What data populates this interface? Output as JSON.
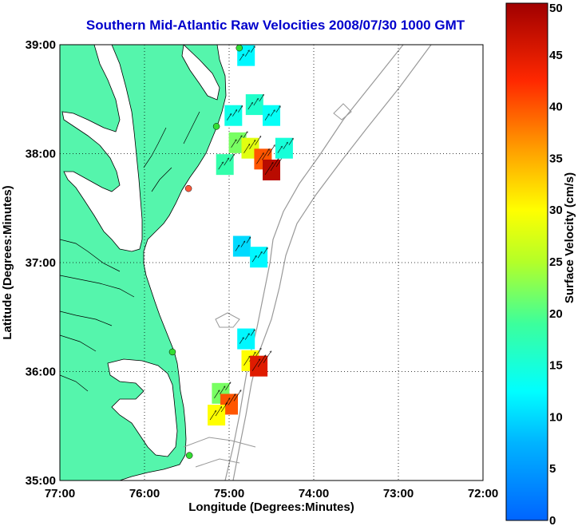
{
  "title": "Southern Mid-Atlantic Raw Velocities 2008/07/30 1000 GMT",
  "axes": {
    "xlabel": "Longitude (Degrees:Minutes)",
    "ylabel": "Latitude (Degrees:Minutes)",
    "xticks": [
      "77:00",
      "76:00",
      "75:00",
      "74:00",
      "73:00",
      "72:00"
    ],
    "yticks": [
      "39:00",
      "38:00",
      "37:00",
      "36:00",
      "35:00"
    ]
  },
  "colorbar": {
    "label": "Surface Velocity (cm/s)",
    "ticks": [
      "50",
      "45",
      "40",
      "35",
      "30",
      "25",
      "20",
      "15",
      "10",
      "5",
      "0"
    ],
    "min": 0,
    "max": 50
  },
  "colors": {
    "land": "#55f5ac",
    "water": "#ffffff",
    "title": "#0000cc",
    "station": "#33dd33",
    "station_alt": "#ff5a3c"
  },
  "chart_data": {
    "type": "heatmap",
    "lon_range": [
      -77,
      -72
    ],
    "lat_range": [
      35,
      39
    ],
    "grid": true,
    "stations": [
      {
        "lon": -74.88,
        "lat": 38.97,
        "status": "active"
      },
      {
        "lon": -75.15,
        "lat": 38.25,
        "status": "active"
      },
      {
        "lon": -75.48,
        "lat": 37.68,
        "status": "alert"
      },
      {
        "lon": -75.67,
        "lat": 36.18,
        "status": "active"
      },
      {
        "lon": -75.47,
        "lat": 35.23,
        "status": "active"
      }
    ],
    "velocity_patches": [
      {
        "lon": -74.8,
        "lat": 38.9,
        "speed": 12
      },
      {
        "lon": -74.95,
        "lat": 38.35,
        "speed": 14
      },
      {
        "lon": -74.7,
        "lat": 38.45,
        "speed": 16
      },
      {
        "lon": -74.5,
        "lat": 38.35,
        "speed": 13
      },
      {
        "lon": -74.9,
        "lat": 38.1,
        "speed": 22
      },
      {
        "lon": -74.75,
        "lat": 38.05,
        "speed": 28
      },
      {
        "lon": -74.6,
        "lat": 37.95,
        "speed": 40
      },
      {
        "lon": -74.5,
        "lat": 37.85,
        "speed": 48
      },
      {
        "lon": -74.35,
        "lat": 38.05,
        "speed": 15
      },
      {
        "lon": -75.05,
        "lat": 37.9,
        "speed": 18
      },
      {
        "lon": -74.85,
        "lat": 37.15,
        "speed": 10
      },
      {
        "lon": -74.65,
        "lat": 37.05,
        "speed": 12
      },
      {
        "lon": -74.8,
        "lat": 36.3,
        "speed": 12
      },
      {
        "lon": -74.75,
        "lat": 36.1,
        "speed": 30
      },
      {
        "lon": -74.65,
        "lat": 36.05,
        "speed": 45
      },
      {
        "lon": -75.1,
        "lat": 35.8,
        "speed": 22
      },
      {
        "lon": -75.0,
        "lat": 35.7,
        "speed": 40
      },
      {
        "lon": -75.15,
        "lat": 35.6,
        "speed": 30
      }
    ]
  }
}
